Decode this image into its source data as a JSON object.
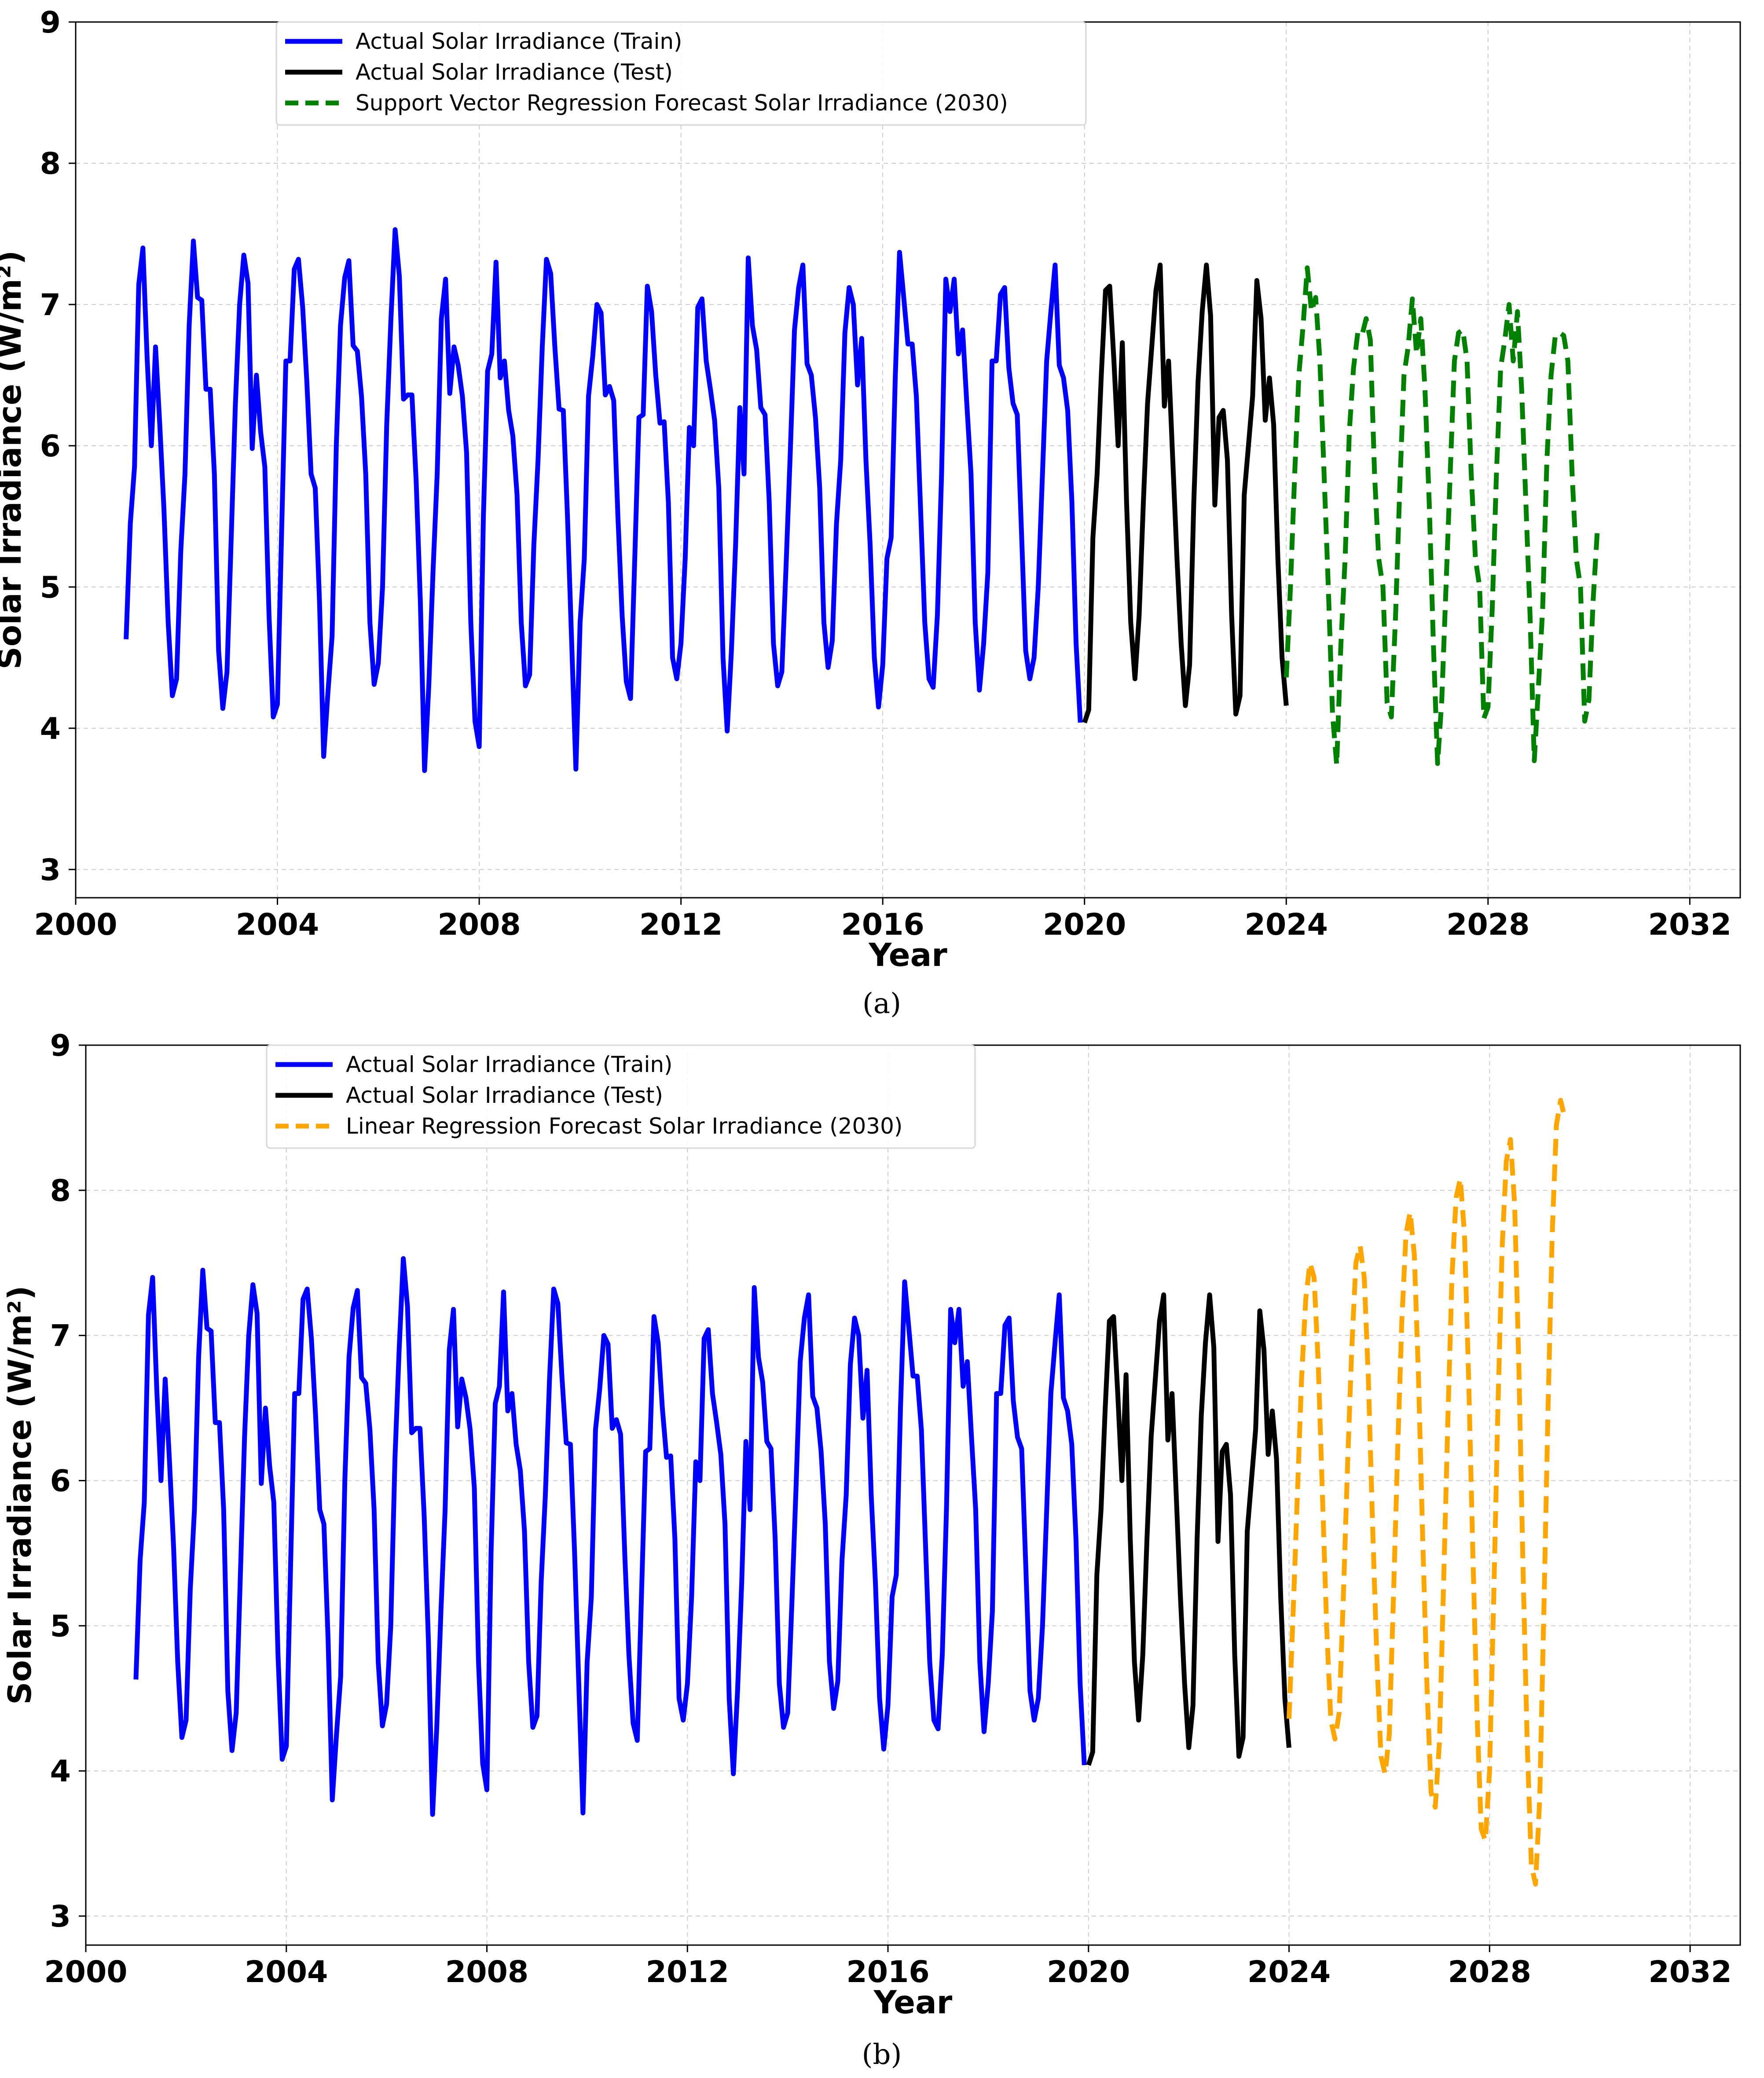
{
  "chart_data": [
    {
      "id": "a",
      "caption": "(a)",
      "type": "line",
      "title": "",
      "xlabel": "Year",
      "ylabel": "Solar Irradiance (W/m²)",
      "xlim": [
        2000,
        2033
      ],
      "ylim": [
        2.8,
        9
      ],
      "xticks": [
        2000,
        2004,
        2008,
        2012,
        2016,
        2020,
        2024,
        2028,
        2032
      ],
      "yticks": [
        3,
        4,
        5,
        6,
        7,
        8,
        9
      ],
      "grid": true,
      "legend_position": "top-left",
      "series": [
        {
          "name": "Actual Solar Irradiance (Train)",
          "color": "#0000ff",
          "style": "solid",
          "x_start": 2001.0,
          "x_step": 0.0833333,
          "values": [
            4.63,
            5.45,
            5.85,
            7.14,
            7.4,
            6.62,
            6.0,
            6.7,
            6.15,
            5.55,
            4.75,
            4.23,
            4.35,
            5.25,
            5.8,
            6.85,
            7.45,
            7.05,
            7.03,
            6.4,
            6.4,
            5.8,
            4.55,
            4.14,
            4.4,
            5.35,
            6.3,
            7.0,
            7.35,
            7.15,
            5.98,
            6.5,
            6.1,
            5.85,
            4.8,
            4.08,
            4.17,
            5.4,
            6.6,
            6.6,
            7.25,
            7.32,
            6.98,
            6.45,
            5.8,
            5.7,
            4.9,
            3.8,
            4.25,
            4.65,
            6.0,
            6.85,
            7.19,
            7.31,
            6.71,
            6.67,
            6.35,
            5.8,
            4.75,
            4.31,
            4.46,
            5.0,
            6.15,
            6.9,
            7.53,
            7.2,
            6.33,
            6.36,
            6.36,
            5.75,
            4.9,
            3.7,
            4.3,
            5.1,
            5.8,
            6.9,
            7.18,
            6.37,
            6.7,
            6.57,
            6.35,
            5.95,
            4.75,
            4.05,
            3.87,
            5.5,
            6.53,
            6.65,
            7.3,
            6.48,
            6.6,
            6.25,
            6.07,
            5.65,
            4.75,
            4.3,
            4.38,
            5.3,
            5.9,
            6.7,
            7.32,
            7.22,
            6.7,
            6.26,
            6.25,
            5.5,
            4.6,
            3.71,
            4.75,
            5.2,
            6.35,
            6.63,
            7.0,
            6.94,
            6.36,
            6.42,
            6.32,
            5.5,
            4.8,
            4.33,
            4.21,
            5.2,
            6.2,
            6.22,
            7.13,
            6.95,
            6.5,
            6.16,
            6.17,
            5.6,
            4.5,
            4.35,
            4.6,
            5.2,
            6.13,
            6.0,
            6.98,
            7.04,
            6.6,
            6.4,
            6.18,
            5.7,
            4.5,
            3.98,
            4.55,
            5.3,
            6.27,
            5.8,
            7.33,
            6.85,
            6.68,
            6.27,
            6.22,
            5.6,
            4.6,
            4.3,
            4.4,
            5.15,
            5.95,
            6.82,
            7.12,
            7.28,
            6.58,
            6.5,
            6.2,
            5.7,
            4.75,
            4.43,
            4.62,
            5.45,
            5.9,
            6.8,
            7.12,
            7.0,
            6.43,
            6.76,
            5.9,
            5.3,
            4.5,
            4.15,
            4.45,
            5.2,
            5.35,
            6.5,
            7.37,
            7.05,
            6.72,
            6.72,
            6.35,
            5.55,
            4.75,
            4.35,
            4.29,
            4.8,
            5.8,
            7.18,
            6.95,
            7.18,
            6.65,
            6.82,
            6.3,
            5.8,
            4.75,
            4.27,
            4.6,
            5.1,
            6.6,
            6.6,
            7.07,
            7.12,
            6.55,
            6.3,
            6.22,
            5.4,
            4.55,
            4.35,
            4.5,
            5.0,
            5.8,
            6.6,
            6.95,
            7.28,
            6.57,
            6.48,
            6.25,
            5.6,
            4.6,
            4.04
          ]
        },
        {
          "name": "Actual Solar Irradiance (Test)",
          "color": "#000000",
          "style": "solid",
          "x_start": 2020.0,
          "x_step": 0.0833333,
          "values": [
            4.04,
            4.13,
            5.35,
            5.8,
            6.5,
            7.1,
            7.13,
            6.6,
            6.0,
            6.73,
            5.6,
            4.75,
            4.35,
            4.8,
            5.6,
            6.3,
            6.7,
            7.1,
            7.28,
            6.28,
            6.6,
            5.9,
            5.2,
            4.6,
            4.16,
            4.45,
            5.6,
            6.45,
            6.95,
            7.28,
            6.92,
            5.58,
            6.2,
            6.25,
            5.9,
            4.8,
            4.1,
            4.23,
            5.65,
            6.0,
            6.35,
            7.17,
            6.9,
            6.18,
            6.48,
            6.15,
            5.2,
            4.5,
            4.16
          ]
        },
        {
          "name": "Support Vector Regression Forecast Solar Irradiance (2030)",
          "color": "#008000",
          "style": "dashed",
          "x_start": 2024.0,
          "x_step": 0.0833333,
          "values": [
            4.36,
            5.0,
            5.8,
            6.5,
            6.85,
            7.26,
            6.95,
            7.05,
            6.6,
            5.8,
            5.0,
            4.1,
            3.74,
            4.6,
            5.2,
            6.1,
            6.55,
            6.8,
            6.78,
            6.9,
            6.75,
            5.8,
            5.2,
            5.0,
            4.18,
            4.08,
            4.8,
            5.7,
            6.5,
            6.7,
            7.04,
            6.65,
            6.9,
            6.4,
            5.6,
            4.6,
            3.75,
            4.2,
            5.0,
            5.8,
            6.6,
            6.8,
            6.82,
            6.6,
            5.8,
            5.2,
            5.0,
            4.07,
            4.15,
            4.85,
            5.8,
            6.55,
            6.75,
            7.0,
            6.6,
            6.95,
            6.4,
            5.6,
            4.8,
            3.77,
            4.3,
            4.85,
            5.9,
            6.5,
            6.78,
            6.8,
            6.78,
            6.6,
            5.8,
            5.2,
            5.0,
            4.05,
            4.2,
            4.9,
            5.4
          ]
        }
      ]
    },
    {
      "id": "b",
      "caption": "(b)",
      "type": "line",
      "title": "",
      "xlabel": "Year",
      "ylabel": "Solar Irradiance (W/m²)",
      "xlim": [
        2000,
        2033
      ],
      "ylim": [
        2.8,
        9
      ],
      "xticks": [
        2000,
        2004,
        2008,
        2012,
        2016,
        2020,
        2024,
        2028,
        2032
      ],
      "yticks": [
        3,
        4,
        5,
        6,
        7,
        8,
        9
      ],
      "grid": true,
      "legend_position": "top-left",
      "series": [
        {
          "name": "Actual Solar Irradiance (Train)",
          "color": "#0000ff",
          "style": "solid",
          "x_start": 2001.0,
          "x_step": 0.0833333,
          "values": [
            4.63,
            5.45,
            5.85,
            7.14,
            7.4,
            6.62,
            6.0,
            6.7,
            6.15,
            5.55,
            4.75,
            4.23,
            4.35,
            5.25,
            5.8,
            6.85,
            7.45,
            7.05,
            7.03,
            6.4,
            6.4,
            5.8,
            4.55,
            4.14,
            4.4,
            5.35,
            6.3,
            7.0,
            7.35,
            7.15,
            5.98,
            6.5,
            6.1,
            5.85,
            4.8,
            4.08,
            4.17,
            5.4,
            6.6,
            6.6,
            7.25,
            7.32,
            6.98,
            6.45,
            5.8,
            5.7,
            4.9,
            3.8,
            4.25,
            4.65,
            6.0,
            6.85,
            7.19,
            7.31,
            6.71,
            6.67,
            6.35,
            5.8,
            4.75,
            4.31,
            4.46,
            5.0,
            6.15,
            6.9,
            7.53,
            7.2,
            6.33,
            6.36,
            6.36,
            5.75,
            4.9,
            3.7,
            4.3,
            5.1,
            5.8,
            6.9,
            7.18,
            6.37,
            6.7,
            6.57,
            6.35,
            5.95,
            4.75,
            4.05,
            3.87,
            5.5,
            6.53,
            6.65,
            7.3,
            6.48,
            6.6,
            6.25,
            6.07,
            5.65,
            4.75,
            4.3,
            4.38,
            5.3,
            5.9,
            6.7,
            7.32,
            7.22,
            6.7,
            6.26,
            6.25,
            5.5,
            4.6,
            3.71,
            4.75,
            5.2,
            6.35,
            6.63,
            7.0,
            6.94,
            6.36,
            6.42,
            6.32,
            5.5,
            4.8,
            4.33,
            4.21,
            5.2,
            6.2,
            6.22,
            7.13,
            6.95,
            6.5,
            6.16,
            6.17,
            5.6,
            4.5,
            4.35,
            4.6,
            5.2,
            6.13,
            6.0,
            6.98,
            7.04,
            6.6,
            6.4,
            6.18,
            5.7,
            4.5,
            3.98,
            4.55,
            5.3,
            6.27,
            5.8,
            7.33,
            6.85,
            6.68,
            6.27,
            6.22,
            5.6,
            4.6,
            4.3,
            4.4,
            5.15,
            5.95,
            6.82,
            7.12,
            7.28,
            6.58,
            6.5,
            6.2,
            5.7,
            4.75,
            4.43,
            4.62,
            5.45,
            5.9,
            6.8,
            7.12,
            7.0,
            6.43,
            6.76,
            5.9,
            5.3,
            4.5,
            4.15,
            4.45,
            5.2,
            5.35,
            6.5,
            7.37,
            7.05,
            6.72,
            6.72,
            6.35,
            5.55,
            4.75,
            4.35,
            4.29,
            4.8,
            5.8,
            7.18,
            6.95,
            7.18,
            6.65,
            6.82,
            6.3,
            5.8,
            4.75,
            4.27,
            4.6,
            5.1,
            6.6,
            6.6,
            7.07,
            7.12,
            6.55,
            6.3,
            6.22,
            5.4,
            4.55,
            4.35,
            4.5,
            5.0,
            5.8,
            6.6,
            6.95,
            7.28,
            6.57,
            6.48,
            6.25,
            5.6,
            4.6,
            4.04
          ]
        },
        {
          "name": "Actual Solar Irradiance (Test)",
          "color": "#000000",
          "style": "solid",
          "x_start": 2020.0,
          "x_step": 0.0833333,
          "values": [
            4.04,
            4.13,
            5.35,
            5.8,
            6.5,
            7.1,
            7.13,
            6.6,
            6.0,
            6.73,
            5.6,
            4.75,
            4.35,
            4.8,
            5.6,
            6.3,
            6.7,
            7.1,
            7.28,
            6.28,
            6.6,
            5.9,
            5.2,
            4.6,
            4.16,
            4.45,
            5.6,
            6.45,
            6.95,
            7.28,
            6.92,
            5.58,
            6.2,
            6.25,
            5.9,
            4.8,
            4.1,
            4.23,
            5.65,
            6.0,
            6.35,
            7.17,
            6.9,
            6.18,
            6.48,
            6.15,
            5.2,
            4.5,
            4.16
          ]
        },
        {
          "name": "Linear Regression Forecast Solar Irradiance (2030)",
          "color": "#ffa500",
          "style": "dashed",
          "x_start": 2024.0,
          "x_step": 0.0833333,
          "values": [
            4.36,
            5.1,
            5.9,
            6.7,
            7.25,
            7.5,
            7.4,
            6.8,
            5.9,
            5.0,
            4.35,
            4.22,
            4.4,
            5.2,
            6.1,
            6.9,
            7.5,
            7.62,
            7.4,
            6.7,
            5.7,
            4.8,
            4.1,
            3.98,
            4.25,
            5.2,
            6.2,
            7.1,
            7.7,
            7.85,
            7.55,
            6.7,
            5.6,
            4.6,
            3.85,
            3.75,
            4.2,
            5.3,
            6.4,
            7.4,
            7.95,
            8.08,
            7.7,
            6.7,
            5.5,
            4.4,
            3.6,
            3.52,
            4.0,
            5.2,
            6.5,
            7.6,
            8.2,
            8.35,
            7.9,
            6.8,
            5.4,
            4.2,
            3.35,
            3.22,
            3.8,
            5.1,
            6.5,
            7.7,
            8.45,
            8.62,
            8.5
          ]
        }
      ]
    }
  ]
}
